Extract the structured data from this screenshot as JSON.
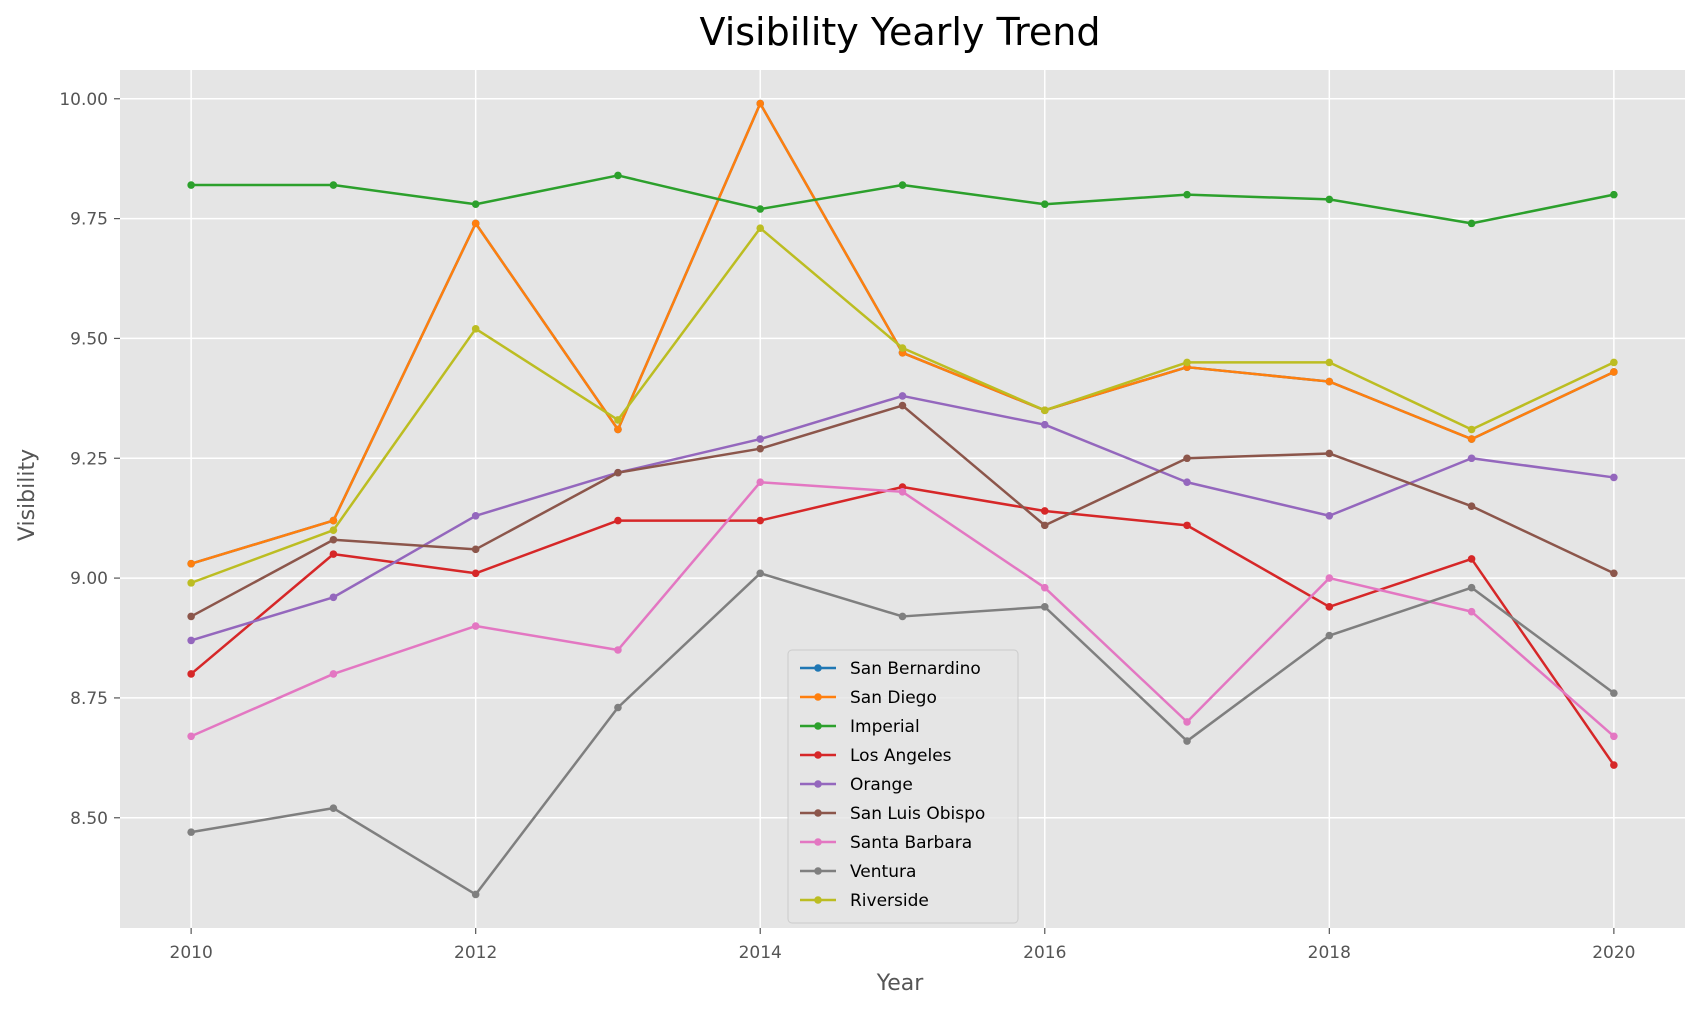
{
  "chart_data": {
    "type": "line",
    "title": "Visibility Yearly Trend",
    "xlabel": "Year",
    "ylabel": "Visibility",
    "xlim": [
      2009.5,
      2020.5
    ],
    "ylim": [
      8.27,
      10.06
    ],
    "xticks": [
      2010,
      2012,
      2014,
      2016,
      2018,
      2020
    ],
    "yticks": [
      8.5,
      8.75,
      9.0,
      9.25,
      9.5,
      9.75,
      10.0
    ],
    "ytick_labels": [
      "8.50",
      "8.75",
      "9.00",
      "9.25",
      "9.50",
      "9.75",
      "10.00"
    ],
    "grid": true,
    "legend_position": "lower-center",
    "x": [
      2010,
      2011,
      2012,
      2013,
      2014,
      2015,
      2016,
      2017,
      2018,
      2019,
      2020
    ],
    "series": [
      {
        "name": "San Bernardino",
        "color": "#1f77b4",
        "values": [
          9.03,
          9.12,
          9.74,
          9.31,
          9.99,
          9.47,
          9.35,
          9.44,
          9.41,
          9.29,
          9.43
        ]
      },
      {
        "name": "San Diego",
        "color": "#ff7f0e",
        "values": [
          9.03,
          9.12,
          9.74,
          9.31,
          9.99,
          9.47,
          9.35,
          9.44,
          9.41,
          9.29,
          9.43
        ]
      },
      {
        "name": "Imperial",
        "color": "#2ca02c",
        "values": [
          9.82,
          9.82,
          9.78,
          9.84,
          9.77,
          9.82,
          9.78,
          9.8,
          9.79,
          9.74,
          9.8
        ]
      },
      {
        "name": "Los Angeles",
        "color": "#d62728",
        "values": [
          8.8,
          9.05,
          9.01,
          9.12,
          9.12,
          9.19,
          9.14,
          9.11,
          8.94,
          9.04,
          8.61
        ]
      },
      {
        "name": "Orange",
        "color": "#9467bd",
        "values": [
          8.87,
          8.96,
          9.13,
          9.22,
          9.29,
          9.38,
          9.32,
          9.2,
          9.13,
          9.25,
          9.21
        ]
      },
      {
        "name": "San Luis Obispo",
        "color": "#8c564b",
        "values": [
          8.92,
          9.08,
          9.06,
          9.22,
          9.27,
          9.36,
          9.11,
          9.25,
          9.26,
          9.15,
          9.01
        ]
      },
      {
        "name": "Santa Barbara",
        "color": "#e377c2",
        "values": [
          8.67,
          8.8,
          8.9,
          8.85,
          9.2,
          9.18,
          8.98,
          8.7,
          9.0,
          8.93,
          8.67
        ]
      },
      {
        "name": "Ventura",
        "color": "#7f7f7f",
        "values": [
          8.47,
          8.52,
          8.34,
          8.73,
          9.01,
          8.92,
          8.94,
          8.66,
          8.88,
          8.98,
          8.76
        ]
      },
      {
        "name": "Riverside",
        "color": "#bcbd22",
        "values": [
          8.99,
          9.1,
          9.52,
          9.33,
          9.73,
          9.48,
          9.35,
          9.45,
          9.45,
          9.31,
          9.45
        ]
      }
    ]
  }
}
